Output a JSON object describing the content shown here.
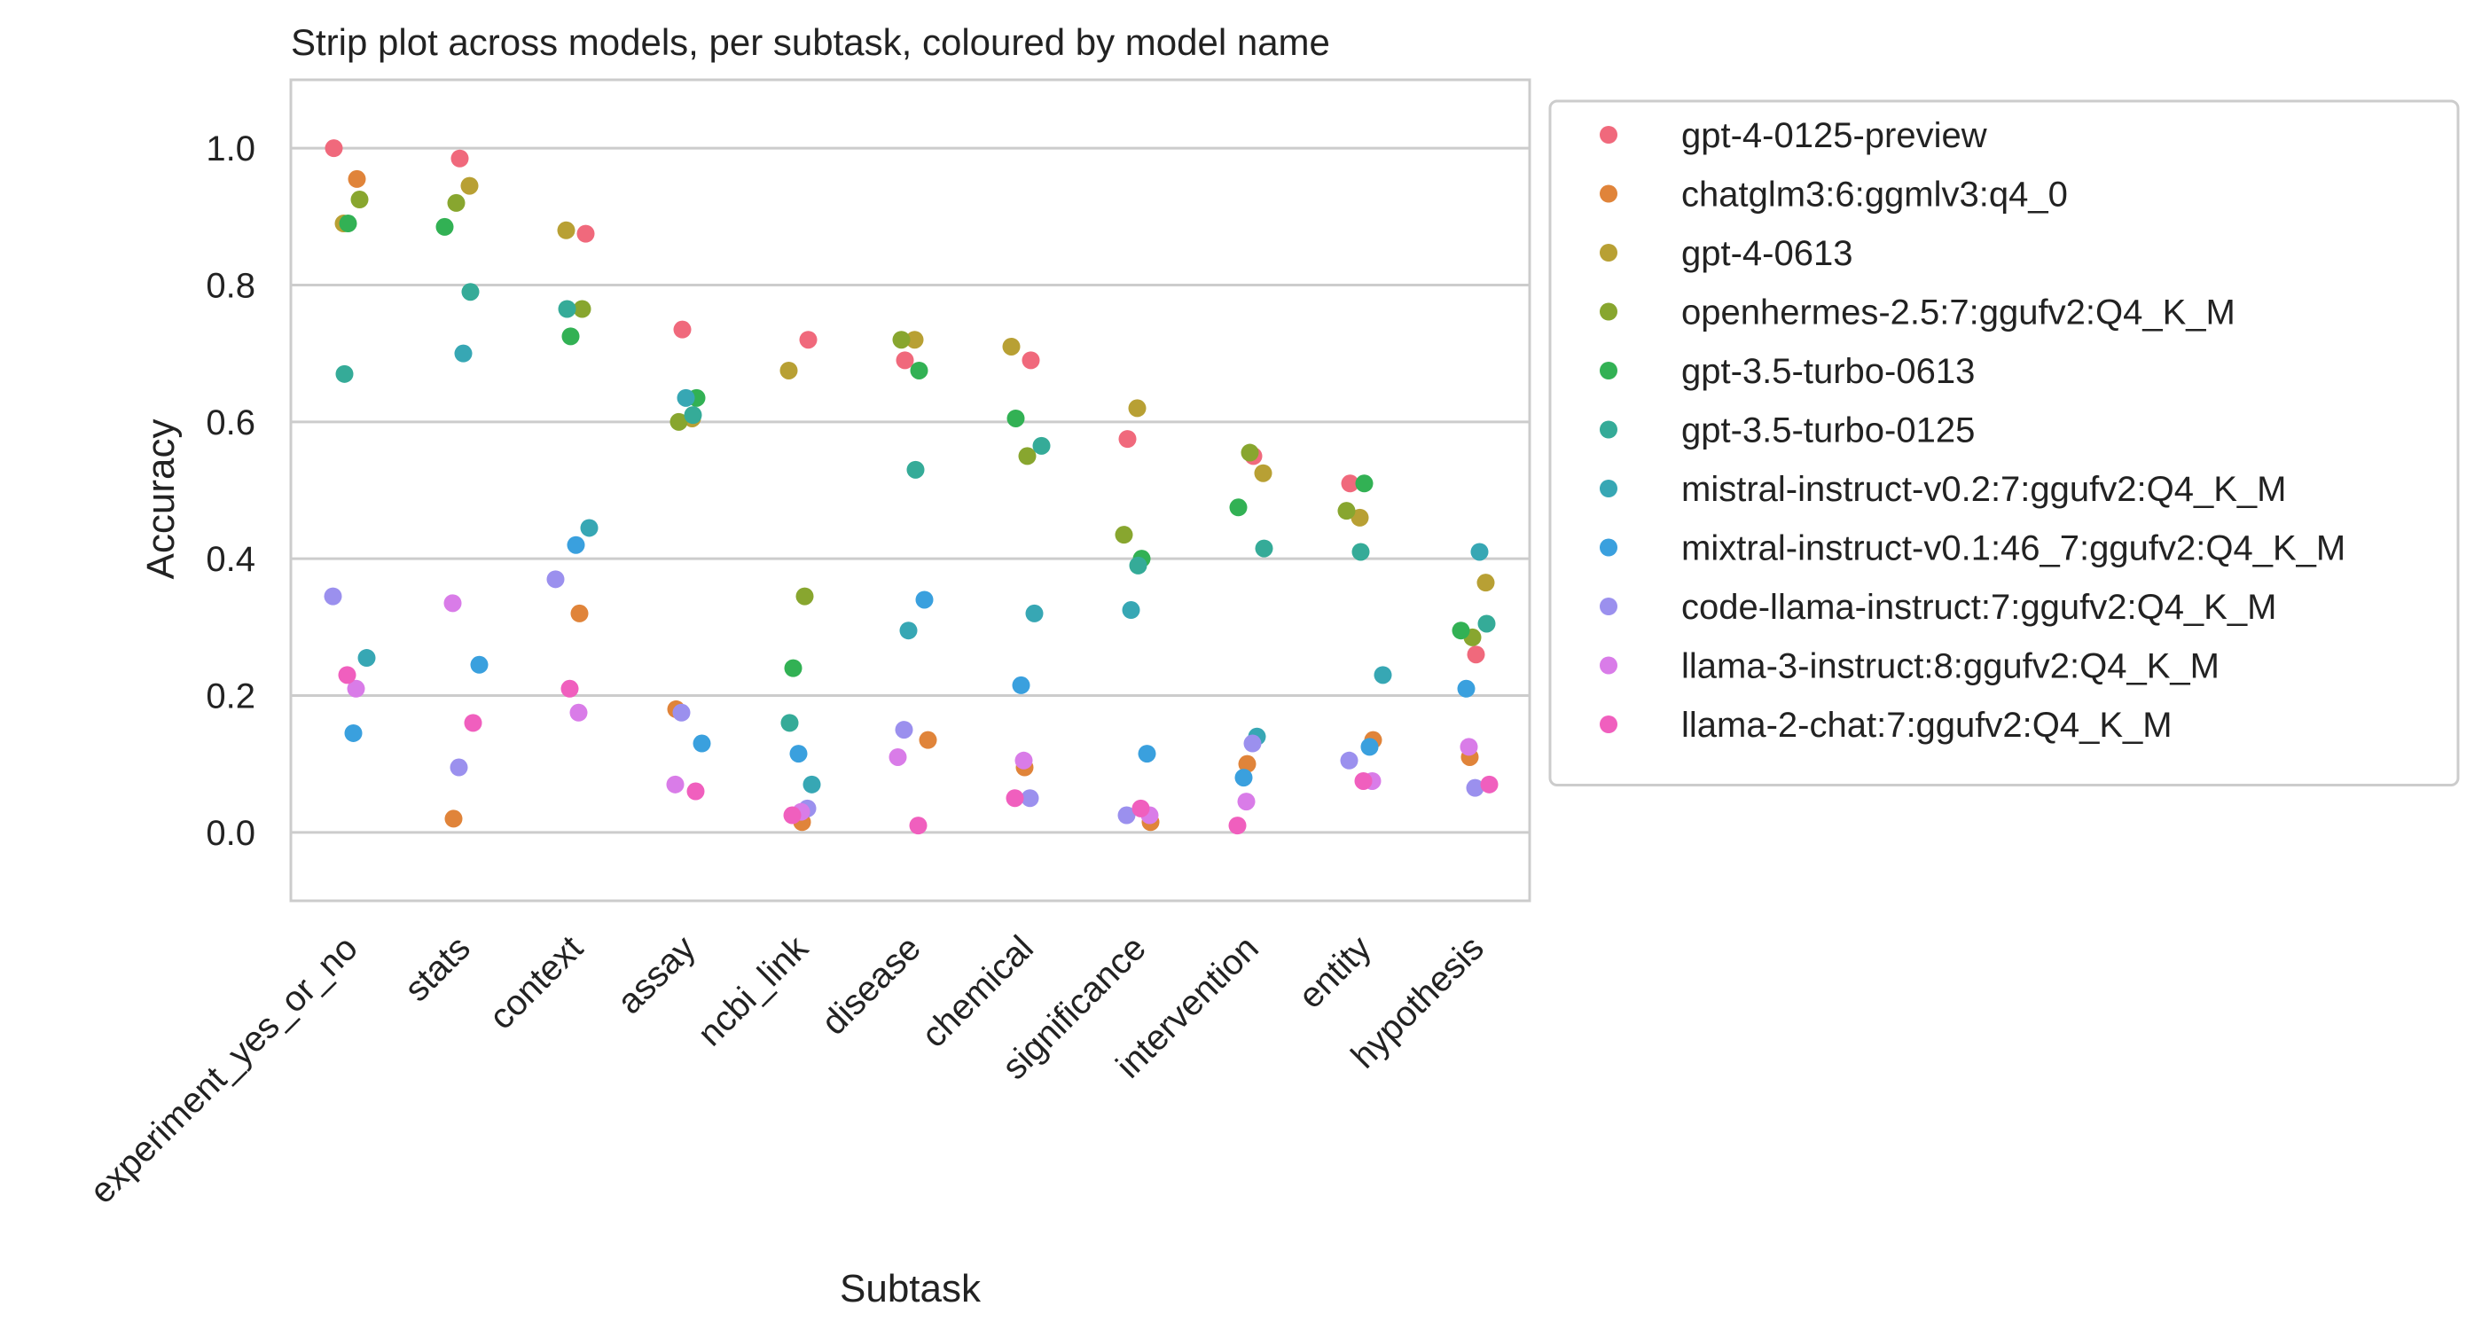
{
  "chart_data": {
    "type": "scatter",
    "title": "Strip plot across models, per subtask, coloured by model name",
    "xlabel": "Subtask",
    "ylabel": "Accuracy",
    "ylim": [
      -0.1,
      1.1
    ],
    "yticks": [
      "0.0",
      "0.2",
      "0.4",
      "0.6",
      "0.8",
      "1.0"
    ],
    "grid": "horizontal",
    "legend_position": "outside-right",
    "categories": [
      "experiment_yes_or_no",
      "stats",
      "context",
      "assay",
      "ncbi_link",
      "disease",
      "chemical",
      "significance",
      "intervention",
      "entity",
      "hypothesis"
    ],
    "series": [
      {
        "name": "gpt-4-0125-preview",
        "color": "#f0697c",
        "values": [
          1.0,
          0.985,
          0.875,
          0.735,
          0.72,
          0.69,
          0.69,
          0.575,
          0.55,
          0.51,
          0.26
        ]
      },
      {
        "name": "chatglm3:6:ggmlv3:q4_0",
        "color": "#e0843a",
        "values": [
          0.955,
          0.02,
          0.32,
          0.18,
          0.015,
          0.135,
          0.095,
          0.015,
          0.1,
          0.135,
          0.11
        ]
      },
      {
        "name": "gpt-4-0613",
        "color": "#b8a034",
        "values": [
          0.89,
          0.945,
          0.88,
          0.605,
          0.675,
          0.72,
          0.71,
          0.62,
          0.525,
          0.46,
          0.365
        ]
      },
      {
        "name": "openhermes-2.5:7:ggufv2:Q4_K_M",
        "color": "#88a62f",
        "values": [
          0.925,
          0.92,
          0.765,
          0.6,
          0.345,
          0.72,
          0.55,
          0.435,
          0.555,
          0.47,
          0.285
        ]
      },
      {
        "name": "gpt-3.5-turbo-0613",
        "color": "#32b154",
        "values": [
          0.89,
          0.885,
          0.725,
          0.635,
          0.24,
          0.675,
          0.605,
          0.4,
          0.475,
          0.51,
          0.295
        ]
      },
      {
        "name": "gpt-3.5-turbo-0125",
        "color": "#35ab98",
        "values": [
          0.67,
          0.79,
          0.765,
          0.61,
          0.16,
          0.53,
          0.565,
          0.39,
          0.415,
          0.41,
          0.305
        ]
      },
      {
        "name": "mistral-instruct-v0.2:7:ggufv2:Q4_K_M",
        "color": "#37a7b4",
        "values": [
          0.255,
          0.7,
          0.445,
          0.635,
          0.07,
          0.295,
          0.32,
          0.325,
          0.14,
          0.23,
          0.41
        ]
      },
      {
        "name": "mixtral-instruct-v0.1:46_7:ggufv2:Q4_K_M",
        "color": "#3aa0de",
        "values": [
          0.145,
          0.245,
          0.42,
          0.13,
          0.115,
          0.34,
          0.215,
          0.115,
          0.08,
          0.125,
          0.21
        ]
      },
      {
        "name": "code-llama-instruct:7:ggufv2:Q4_K_M",
        "color": "#9b90ee",
        "values": [
          0.345,
          0.095,
          0.37,
          0.175,
          0.035,
          0.15,
          0.05,
          0.025,
          0.13,
          0.105,
          0.065
        ]
      },
      {
        "name": "llama-3-instruct:8:ggufv2:Q4_K_M",
        "color": "#d97ce8",
        "values": [
          0.21,
          0.335,
          0.175,
          0.07,
          0.03,
          0.11,
          0.105,
          0.025,
          0.045,
          0.075,
          0.125
        ]
      },
      {
        "name": "llama-2-chat:7:ggufv2:Q4_K_M",
        "color": "#f05fbe",
        "values": [
          0.23,
          0.16,
          0.21,
          0.06,
          0.025,
          0.01,
          0.05,
          0.035,
          0.01,
          0.075,
          0.07
        ]
      }
    ]
  }
}
